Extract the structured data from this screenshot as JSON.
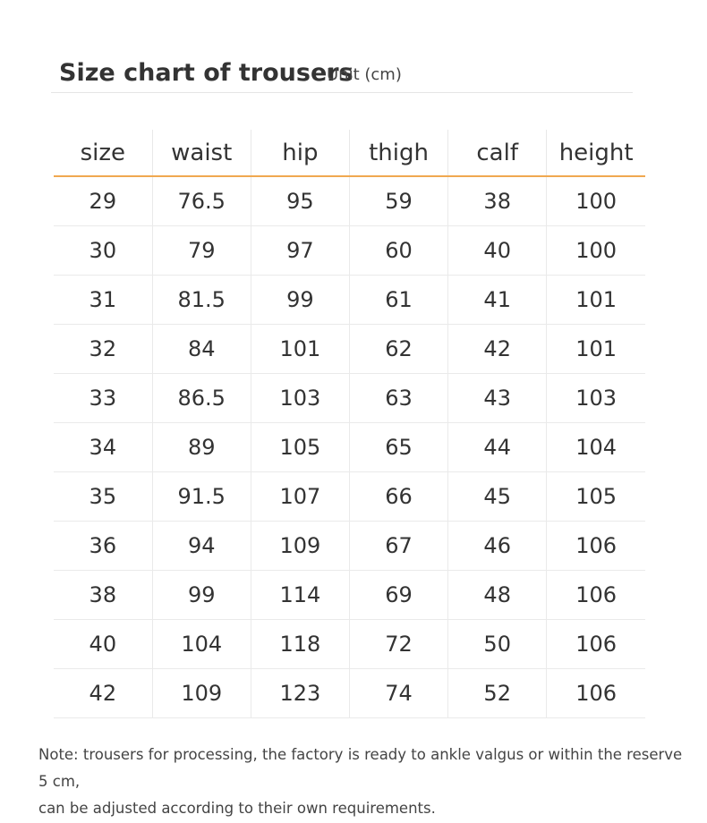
{
  "header": {
    "title": "Size chart of trousers",
    "unit": "Unit (cm)"
  },
  "table": {
    "columns": [
      "size",
      "waist",
      "hip",
      "thigh",
      "calf",
      "height"
    ],
    "rows": [
      [
        "29",
        "76.5",
        "95",
        "59",
        "38",
        "100"
      ],
      [
        "30",
        "79",
        "97",
        "60",
        "40",
        "100"
      ],
      [
        "31",
        "81.5",
        "99",
        "61",
        "41",
        "101"
      ],
      [
        "32",
        "84",
        "101",
        "62",
        "42",
        "101"
      ],
      [
        "33",
        "86.5",
        "103",
        "63",
        "43",
        "103"
      ],
      [
        "34",
        "89",
        "105",
        "65",
        "44",
        "104"
      ],
      [
        "35",
        "91.5",
        "107",
        "66",
        "45",
        "105"
      ],
      [
        "36",
        "94",
        "109",
        "67",
        "46",
        "106"
      ],
      [
        "38",
        "99",
        "114",
        "69",
        "48",
        "106"
      ],
      [
        "40",
        "104",
        "118",
        "72",
        "50",
        "106"
      ],
      [
        "42",
        "109",
        "123",
        "74",
        "52",
        "106"
      ]
    ]
  },
  "note": {
    "line1": "Note: trousers for processing, the factory is ready to ankle valgus or within the reserve 5 cm,",
    "line2": "can be adjusted according to their own requirements."
  },
  "colors": {
    "header_rule": "#f0a850",
    "grid": "#eaeaea",
    "text": "#333333"
  }
}
